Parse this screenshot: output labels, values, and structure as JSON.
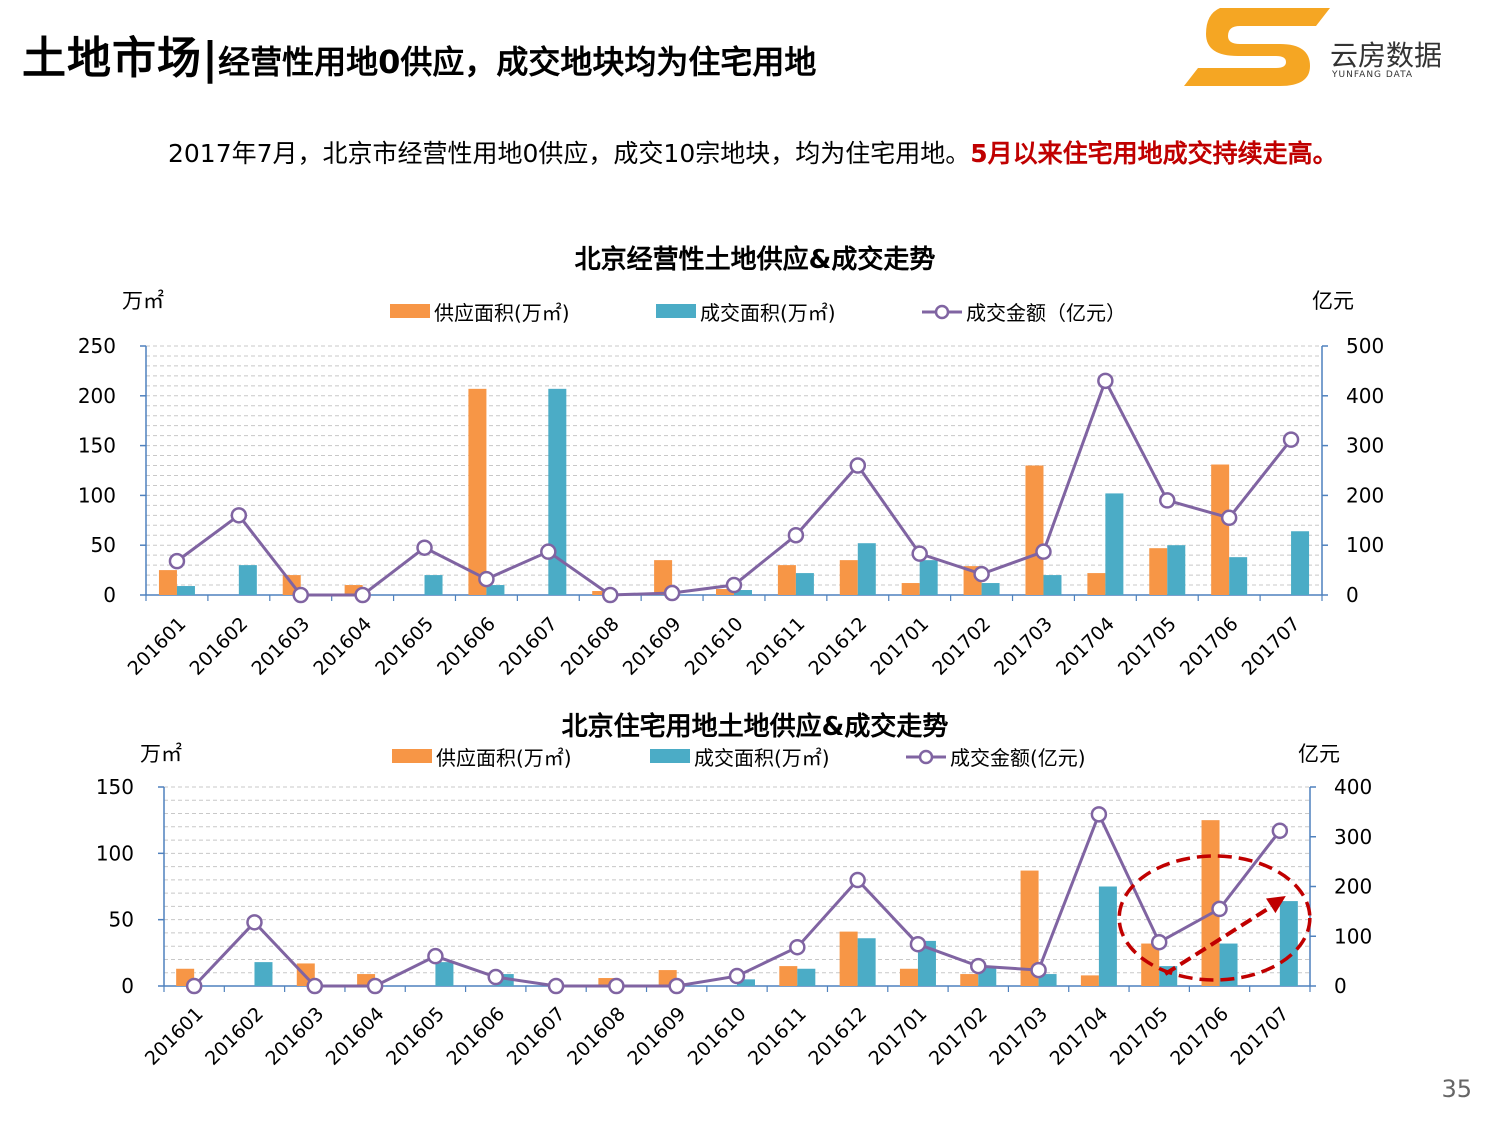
{
  "header": {
    "title_main": "土地市场",
    "title_sep": "|",
    "title_sub": "经营性用地0供应，成交地块均为住宅用地"
  },
  "logo": {
    "name": "云房数据",
    "sub": "YUNFANG DATA",
    "icon": "yunfang-logo-icon",
    "color": "#f5a623"
  },
  "summary": {
    "text": "2017年7月，北京市经营性用地0供应，成交10宗地块，均为住宅用地。",
    "highlight": "5月以来住宅用地成交持续走高。"
  },
  "page_number": "35",
  "colors": {
    "supply": "#f79646",
    "deal_area": "#4bacc6",
    "deal_amount": "#8064a2",
    "axis": "#4f81bd",
    "highlight_ring": "#c00000"
  },
  "chart_data": [
    {
      "type": "bar+line",
      "title": "北京经营性土地供应&成交走势",
      "y_left_unit": "万㎡",
      "y_right_unit": "亿元",
      "y_left_ticks": [
        "0",
        "50",
        "100",
        "150",
        "200",
        "250"
      ],
      "y_right_ticks": [
        "0",
        "100",
        "200",
        "300",
        "400",
        "500"
      ],
      "ylim_left": [
        0,
        250
      ],
      "ylim_right": [
        0,
        500
      ],
      "categories": [
        "201601",
        "201602",
        "201603",
        "201604",
        "201605",
        "201606",
        "201607",
        "201608",
        "201609",
        "201610",
        "201611",
        "201612",
        "201701",
        "201702",
        "201703",
        "201704",
        "201705",
        "201706",
        "201707"
      ],
      "series": [
        {
          "name": "供应面积(万㎡)",
          "kind": "bar",
          "axis": "left",
          "values": [
            25,
            0,
            20,
            10,
            0,
            207,
            0,
            4,
            35,
            6,
            30,
            35,
            12,
            29,
            130,
            22,
            47,
            131,
            0
          ]
        },
        {
          "name": "成交面积(万㎡)",
          "kind": "bar",
          "axis": "left",
          "values": [
            9,
            30,
            0,
            0,
            20,
            10,
            207,
            0,
            0,
            5,
            22,
            52,
            35,
            12,
            20,
            102,
            50,
            38,
            64
          ]
        },
        {
          "name": "成交金额（亿元）",
          "kind": "line",
          "axis": "right",
          "values": [
            68,
            160,
            0,
            0,
            95,
            32,
            87,
            0,
            4,
            20,
            120,
            260,
            83,
            42,
            87,
            430,
            190,
            155,
            312
          ]
        }
      ],
      "legend_position": "top"
    },
    {
      "type": "bar+line",
      "title": "北京住宅用地土地供应&成交走势",
      "y_left_unit": "万㎡",
      "y_right_unit": "亿元",
      "y_left_ticks": [
        "0",
        "50",
        "100",
        "150"
      ],
      "y_right_ticks": [
        "0",
        "100",
        "200",
        "300",
        "400"
      ],
      "ylim_left": [
        0,
        150
      ],
      "ylim_right": [
        0,
        400
      ],
      "categories": [
        "201601",
        "201602",
        "201603",
        "201604",
        "201605",
        "201606",
        "201607",
        "201608",
        "201609",
        "201610",
        "201611",
        "201612",
        "201701",
        "201702",
        "201703",
        "201704",
        "201705",
        "201706",
        "201707"
      ],
      "series": [
        {
          "name": "供应面积(万㎡)",
          "kind": "bar",
          "axis": "left",
          "values": [
            13,
            0,
            17,
            9,
            0,
            0,
            0,
            6,
            12,
            0,
            15,
            41,
            13,
            9,
            87,
            8,
            32,
            125,
            0
          ]
        },
        {
          "name": "成交面积(万㎡)",
          "kind": "bar",
          "axis": "left",
          "values": [
            0,
            18,
            0,
            0,
            18,
            9,
            0,
            0,
            0,
            5,
            13,
            36,
            34,
            15,
            9,
            75,
            15,
            32,
            64
          ]
        },
        {
          "name": "成交金额(亿元)",
          "kind": "line",
          "axis": "right",
          "values": [
            0,
            128,
            0,
            0,
            60,
            18,
            0,
            0,
            0,
            20,
            78,
            213,
            84,
            40,
            32,
            345,
            88,
            155,
            312
          ]
        }
      ],
      "legend_position": "top",
      "annotation": {
        "type": "dashed-ellipse-with-arrow",
        "covers_categories": [
          "201705",
          "201706",
          "201707"
        ]
      }
    }
  ]
}
